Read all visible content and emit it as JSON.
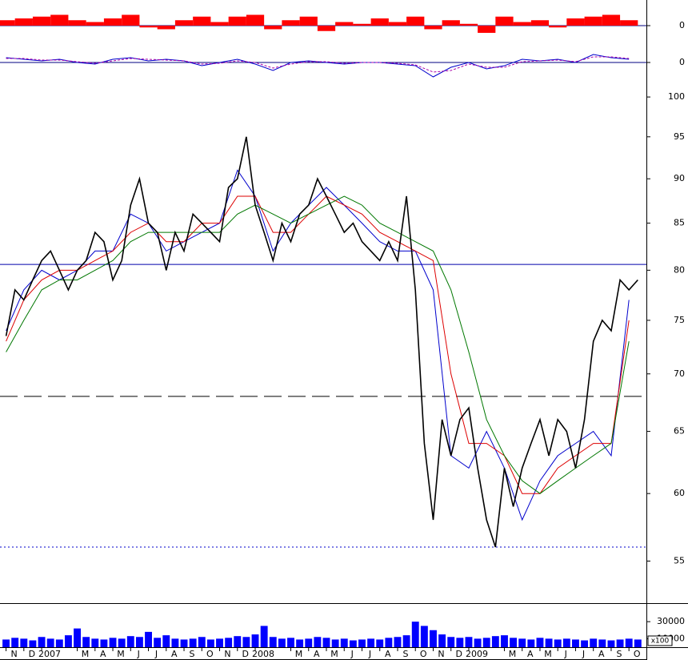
{
  "chart_data": [
    {
      "type": "area",
      "color": "#ff0000",
      "zero_color": "#000080",
      "x": [
        0,
        1,
        2,
        3,
        4,
        5,
        6,
        7,
        8,
        9,
        10,
        11,
        12,
        13,
        14,
        15,
        16,
        17,
        18,
        19,
        20,
        21,
        22,
        23,
        24,
        25,
        26,
        27,
        28,
        29,
        30,
        31,
        32,
        33,
        34,
        35
      ],
      "values": [
        0.3,
        0.4,
        0.5,
        0.6,
        0.3,
        0.2,
        0.4,
        0.6,
        -0.1,
        -0.2,
        0.3,
        0.5,
        0.2,
        0.5,
        0.6,
        -0.2,
        0.3,
        0.5,
        -0.3,
        0.2,
        0.1,
        0.4,
        0.2,
        0.5,
        -0.2,
        0.3,
        0.1,
        -0.4,
        0.5,
        0.2,
        0.3,
        -0.1,
        0.4,
        0.5,
        0.6,
        0.3
      ],
      "ylim": [
        -0.8,
        1.2
      ],
      "yticks": [
        0
      ]
    },
    {
      "type": "line",
      "zero_color": "#000080",
      "x": [
        0,
        1,
        2,
        3,
        4,
        5,
        6,
        7,
        8,
        9,
        10,
        11,
        12,
        13,
        14,
        15,
        16,
        17,
        18,
        19,
        20,
        21,
        22,
        23,
        24,
        25,
        26,
        27,
        28,
        29,
        30,
        31,
        32,
        33,
        34,
        35
      ],
      "series": [
        {
          "color": "#0000cc",
          "values": [
            0.3,
            0.2,
            0.1,
            0.2,
            0,
            -0.1,
            0.2,
            0.3,
            0.1,
            0.2,
            0.1,
            -0.2,
            0,
            0.2,
            -0.1,
            -0.5,
            0,
            0.1,
            0,
            -0.1,
            0,
            0,
            -0.1,
            -0.2,
            -0.9,
            -0.3,
            0,
            -0.4,
            -0.2,
            0.2,
            0.1,
            0.2,
            0,
            0.5,
            0.3,
            0.2
          ]
        },
        {
          "color": "#aa00aa",
          "dash": true,
          "values": [
            0.25,
            0.25,
            0.15,
            0.15,
            0.05,
            -0.05,
            0.1,
            0.25,
            0.2,
            0.15,
            0.1,
            -0.1,
            -0.05,
            0.1,
            0,
            -0.35,
            -0.1,
            0.05,
            0.05,
            -0.05,
            0,
            0,
            -0.05,
            -0.15,
            -0.6,
            -0.5,
            -0.1,
            -0.3,
            -0.3,
            0.05,
            0.1,
            0.15,
            0.05,
            0.35,
            0.35,
            0.25
          ]
        }
      ],
      "ylim": [
        -1,
        1
      ],
      "yticks": [
        0
      ]
    },
    {
      "type": "price",
      "log_scale": true,
      "x": [
        0,
        0.5,
        1,
        1.5,
        2,
        2.5,
        3,
        3.5,
        4,
        4.5,
        5,
        5.5,
        6,
        6.5,
        7,
        7.5,
        8,
        8.5,
        9,
        9.5,
        10,
        10.5,
        11,
        11.5,
        12,
        12.5,
        13,
        13.5,
        14,
        14.5,
        15,
        15.5,
        16,
        16.5,
        17,
        17.5,
        18,
        18.5,
        19,
        19.5,
        20,
        20.5,
        21,
        21.5,
        22,
        22.5,
        23,
        23.5,
        24,
        24.5,
        25,
        25.5,
        26,
        26.5,
        27,
        27.5,
        28,
        28.5,
        29,
        29.5,
        30,
        30.5,
        31,
        31.5,
        32,
        32.5,
        33,
        33.5,
        34,
        34.5,
        35,
        35.5
      ],
      "values": [
        73.5,
        78,
        77,
        79,
        81,
        82,
        80,
        78,
        80,
        81,
        84,
        83,
        79,
        81,
        87,
        90,
        85,
        84,
        80,
        84,
        82,
        86,
        85,
        84,
        83,
        89,
        90,
        95,
        87,
        84,
        81,
        85,
        83,
        86,
        87,
        90,
        88,
        86,
        84,
        85,
        83,
        82,
        81,
        83,
        81,
        88,
        78,
        64,
        58,
        66,
        63,
        66,
        67,
        62,
        58,
        56,
        62,
        59,
        62,
        64,
        66,
        63,
        66,
        65,
        62,
        66,
        73,
        75,
        74,
        79,
        78,
        79
      ],
      "color": "#000000",
      "series": [
        {
          "color": "#0000cc",
          "x": [
            0,
            1,
            2,
            3,
            4,
            5,
            6,
            7,
            8,
            9,
            10,
            11,
            12,
            13,
            14,
            15,
            16,
            17,
            18,
            19,
            20,
            21,
            22,
            23,
            24,
            25,
            26,
            27,
            28,
            29,
            30,
            31,
            32,
            33,
            34,
            35
          ],
          "values": [
            74,
            78,
            80,
            79,
            80,
            82,
            82,
            86,
            85,
            82,
            83,
            84,
            85,
            91,
            88,
            82,
            85,
            87,
            89,
            87,
            85,
            83,
            82,
            82,
            78,
            63,
            62,
            65,
            62,
            58,
            61,
            63,
            64,
            65,
            63,
            77
          ]
        },
        {
          "color": "#dd0000",
          "x": [
            0,
            1,
            2,
            3,
            4,
            5,
            6,
            7,
            8,
            9,
            10,
            11,
            12,
            13,
            14,
            15,
            16,
            17,
            18,
            19,
            20,
            21,
            22,
            23,
            24,
            25,
            26,
            27,
            28,
            29,
            30,
            31,
            32,
            33,
            34,
            35
          ],
          "values": [
            73,
            77,
            79,
            80,
            80,
            81,
            82,
            84,
            85,
            83,
            83,
            85,
            85,
            88,
            88,
            84,
            84,
            86,
            88,
            87,
            86,
            84,
            83,
            82,
            81,
            70,
            64,
            64,
            63,
            60,
            60,
            62,
            63,
            64,
            64,
            75
          ]
        },
        {
          "color": "#007700",
          "x": [
            0,
            1,
            2,
            3,
            4,
            5,
            6,
            7,
            8,
            9,
            10,
            11,
            12,
            13,
            14,
            15,
            16,
            17,
            18,
            19,
            20,
            21,
            22,
            23,
            24,
            25,
            26,
            27,
            28,
            29,
            30,
            31,
            32,
            33,
            34,
            35
          ],
          "values": [
            72,
            75,
            78,
            79,
            79,
            80,
            81,
            83,
            84,
            84,
            84,
            84,
            84,
            86,
            87,
            86,
            85,
            86,
            87,
            88,
            87,
            85,
            84,
            83,
            82,
            78,
            72,
            66,
            63,
            61,
            60,
            61,
            62,
            63,
            64,
            73
          ]
        }
      ],
      "hlines": [
        {
          "value": 80.6,
          "color": "#0000aa",
          "style": "solid"
        },
        {
          "value": 68,
          "color": "#000000",
          "style": "dashed"
        },
        {
          "value": 56,
          "color": "#0000cc",
          "style": "dotted"
        }
      ],
      "ylim": [
        52.1,
        102.2
      ],
      "yticks": [
        55,
        60,
        65,
        70,
        75,
        80,
        85,
        90,
        95,
        100
      ]
    },
    {
      "type": "volume",
      "color": "#0000ff",
      "unit_label": "x100",
      "x": [
        0,
        0.5,
        1,
        1.5,
        2,
        2.5,
        3,
        3.5,
        4,
        4.5,
        5,
        5.5,
        6,
        6.5,
        7,
        7.5,
        8,
        8.5,
        9,
        9.5,
        10,
        10.5,
        11,
        11.5,
        12,
        12.5,
        13,
        13.5,
        14,
        14.5,
        15,
        15.5,
        16,
        16.5,
        17,
        17.5,
        18,
        18.5,
        19,
        19.5,
        20,
        20.5,
        21,
        21.5,
        22,
        22.5,
        23,
        23.5,
        24,
        24.5,
        25,
        25.5,
        26,
        26.5,
        27,
        27.5,
        28,
        28.5,
        29,
        29.5,
        30,
        30.5,
        31,
        31.5,
        32,
        32.5,
        33,
        33.5,
        34,
        34.5,
        35,
        35.5
      ],
      "values": [
        9000,
        11000,
        10000,
        8000,
        12000,
        10000,
        9000,
        14000,
        22000,
        12000,
        10000,
        9000,
        11000,
        10000,
        13000,
        12000,
        18000,
        11000,
        14000,
        10000,
        9000,
        10000,
        12000,
        9000,
        10000,
        11000,
        13000,
        12000,
        15000,
        25000,
        12000,
        10000,
        11000,
        9000,
        10000,
        12000,
        11000,
        9000,
        10000,
        8000,
        9000,
        10000,
        9000,
        11000,
        12000,
        14000,
        30000,
        25000,
        20000,
        15000,
        12000,
        11000,
        12000,
        10000,
        11000,
        13000,
        14000,
        11000,
        10000,
        9000,
        11000,
        10000,
        9000,
        10000,
        9000,
        8000,
        10000,
        9000,
        8000,
        9000,
        10000,
        9000
      ],
      "ylim": [
        0,
        48000
      ],
      "yticks": [
        30000,
        10000
      ],
      "xlim": [
        -0.34,
        35.98
      ],
      "xticks": [
        {
          "value": 0,
          "label": "N"
        },
        {
          "value": 1,
          "label": "D"
        },
        {
          "value": 2,
          "label": "2007"
        },
        {
          "value": 4,
          "label": "M"
        },
        {
          "value": 5,
          "label": "A"
        },
        {
          "value": 6,
          "label": "M"
        },
        {
          "value": 7,
          "label": "J"
        },
        {
          "value": 8,
          "label": "J"
        },
        {
          "value": 9,
          "label": "A"
        },
        {
          "value": 10,
          "label": "S"
        },
        {
          "value": 11,
          "label": "O"
        },
        {
          "value": 12,
          "label": "N"
        },
        {
          "value": 13,
          "label": "D"
        },
        {
          "value": 14,
          "label": "2008"
        },
        {
          "value": 16,
          "label": "M"
        },
        {
          "value": 17,
          "label": "A"
        },
        {
          "value": 18,
          "label": "M"
        },
        {
          "value": 19,
          "label": "J"
        },
        {
          "value": 20,
          "label": "J"
        },
        {
          "value": 21,
          "label": "A"
        },
        {
          "value": 22,
          "label": "S"
        },
        {
          "value": 23,
          "label": "O"
        },
        {
          "value": 24,
          "label": "N"
        },
        {
          "value": 25,
          "label": "D"
        },
        {
          "value": 26,
          "label": "2009"
        },
        {
          "value": 28,
          "label": "M"
        },
        {
          "value": 29,
          "label": "A"
        },
        {
          "value": 30,
          "label": "M"
        },
        {
          "value": 31,
          "label": "J"
        },
        {
          "value": 32,
          "label": "J"
        },
        {
          "value": 33,
          "label": "A"
        },
        {
          "value": 34,
          "label": "S"
        },
        {
          "value": 35,
          "label": "O"
        }
      ]
    }
  ]
}
